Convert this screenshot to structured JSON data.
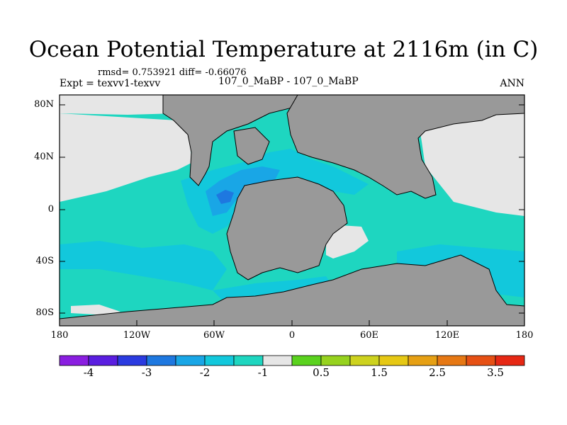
{
  "title": "Ocean Potential Temperature at 2116m (in C)",
  "stats": "rmsd= 0.753921 diff= -0.66076",
  "expt": "Expt = texvv1-texvv",
  "case": "107_0_MaBP - 107_0_MaBP",
  "season": "ANN",
  "lat_labels": [
    "80N",
    "40N",
    "0",
    "40S",
    "80S"
  ],
  "lon_labels": [
    "180",
    "120W",
    "60W",
    "0",
    "60E",
    "120E",
    "180"
  ],
  "colorbar": {
    "labels": [
      "-4",
      "-3",
      "-2",
      "-1",
      "0.5",
      "1.5",
      "2.5",
      "3.5"
    ],
    "colors": [
      "#8a1ee0",
      "#5a1ee0",
      "#2b3be0",
      "#1e78e0",
      "#19a6e6",
      "#12c8dc",
      "#1ed6c0",
      "#e6e6e6",
      "#5ad21e",
      "#96d21e",
      "#cdd21e",
      "#e6c814",
      "#e6a014",
      "#e67814",
      "#e65014",
      "#e62814"
    ]
  },
  "map_colors": {
    "land": "#999999",
    "ice_or_missing": "#e6e6e6",
    "ocean_default": "#1ed6c0",
    "light_blue": "#12c8dc",
    "blue": "#19a6e6",
    "darker_blue": "#1e78e0"
  }
}
